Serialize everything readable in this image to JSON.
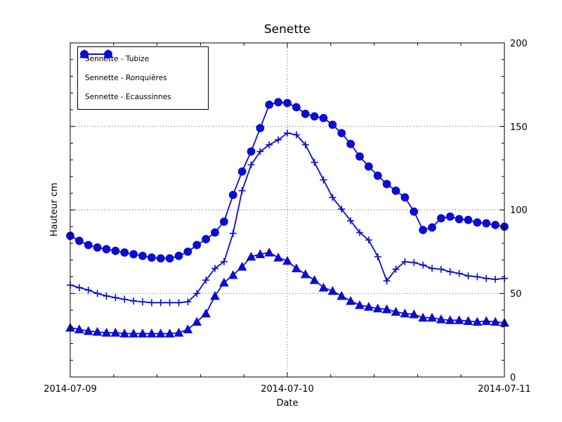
{
  "chart_data": {
    "type": "line",
    "title": "Senette",
    "xlabel": "Date",
    "ylabel": "Hauteur cm",
    "x_ticklabels": [
      "2014-07-09",
      "2014-07-10",
      "2014-07-11"
    ],
    "x_tick_positions_hours": [
      0,
      24,
      48
    ],
    "x_minor_tick_step_hours": 4.8,
    "xlim_hours": [
      0,
      48
    ],
    "y_ticks": [
      0,
      50,
      100,
      150,
      200
    ],
    "y_minor_tick_step": 10,
    "ylim": [
      0,
      200
    ],
    "grid": "dotted horizontal lines at 50/100/150 and vertical line at 2014-07-10",
    "legend_position": "upper-left",
    "y_axis_labels_side": "right",
    "series_color": "#0c0cd6",
    "x_hours": [
      0,
      1,
      2,
      3,
      4,
      5,
      6,
      7,
      8,
      9,
      10,
      11,
      12,
      13,
      14,
      15,
      16,
      17,
      18,
      19,
      20,
      21,
      22,
      23,
      24,
      25,
      26,
      27,
      28,
      29,
      30,
      31,
      32,
      33,
      34,
      35,
      36,
      37,
      38,
      39,
      40,
      41,
      42,
      43,
      44,
      45,
      46,
      47,
      48
    ],
    "series": [
      {
        "name": "Sennette - Tubize",
        "marker": "circle",
        "values": [
          84.5,
          81.5,
          79,
          77.5,
          76.5,
          75.5,
          74.5,
          73.5,
          72.5,
          71.5,
          71,
          71,
          72.5,
          75,
          79,
          82.5,
          86.5,
          93,
          109,
          123,
          135,
          149,
          163,
          164.5,
          164,
          161.5,
          157.5,
          156,
          155,
          151,
          146,
          139.5,
          132,
          126,
          120.5,
          115.5,
          111.5,
          107.5,
          99,
          88,
          89.5,
          95,
          96,
          94.5,
          94,
          92.5,
          92,
          91,
          90
        ]
      },
      {
        "name": "Sennette - Ronquières",
        "marker": "plus",
        "values": [
          55,
          53.5,
          52,
          50,
          48.5,
          47.5,
          46.5,
          45.5,
          45,
          44.5,
          44.5,
          44.5,
          44.5,
          45,
          50,
          58,
          65,
          69,
          86,
          111.5,
          127,
          135,
          139,
          142,
          146,
          145,
          139,
          128.5,
          118,
          107.5,
          100.5,
          93.5,
          86.5,
          82,
          72,
          57.5,
          64.5,
          69,
          68.5,
          67,
          65,
          64.5,
          63,
          62,
          60.5,
          60,
          59,
          58.5,
          59
        ]
      },
      {
        "name": "Sennette - Ecaussinnes",
        "marker": "triangle",
        "values": [
          29.5,
          28.5,
          27.5,
          27,
          26.5,
          26.5,
          26,
          26,
          26,
          26,
          26,
          26,
          26.5,
          28.5,
          33,
          38,
          48.5,
          56.5,
          61,
          66,
          72,
          73.5,
          74.5,
          71.5,
          69.5,
          65,
          61.5,
          58,
          53.5,
          51.5,
          48.5,
          45.5,
          43,
          42,
          41,
          40.5,
          39,
          38,
          37.5,
          35.5,
          35.5,
          34.5,
          34,
          34,
          33.5,
          33,
          33.5,
          33,
          32.5
        ]
      }
    ]
  }
}
